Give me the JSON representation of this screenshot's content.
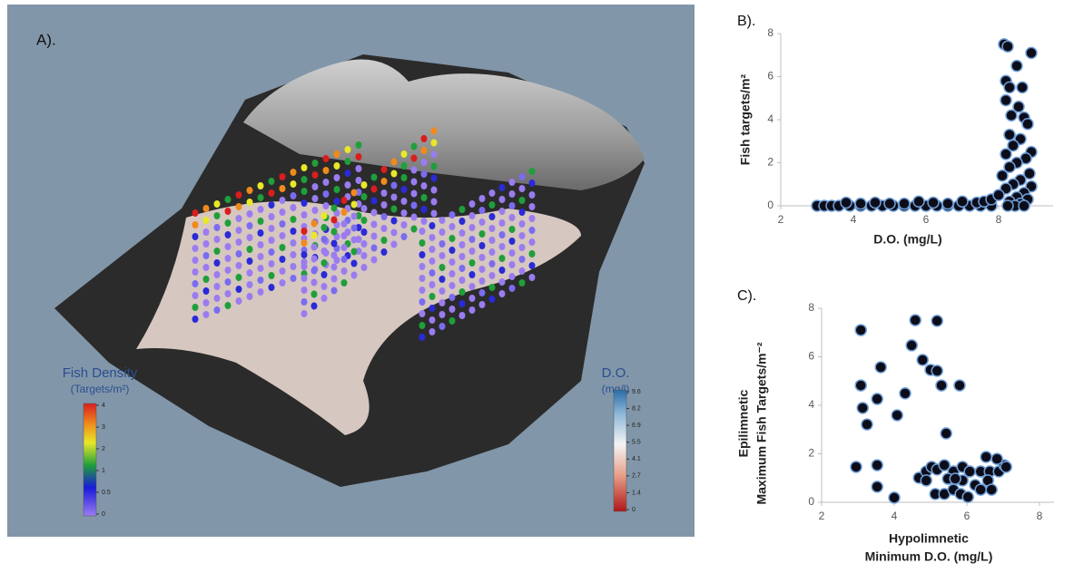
{
  "panel_a": {
    "label": "A).",
    "fish_colorbar": {
      "title": "Fish Density",
      "subtitle": "(Targets/m²)",
      "ticks": [
        0,
        0.5,
        1,
        2,
        3,
        4
      ]
    },
    "do_colorbar": {
      "title": "D.O.",
      "subtitle": "(mg/l)",
      "ticks": [
        0,
        1.4,
        2.7,
        4.1,
        5.5,
        6.9,
        8.2,
        9.6
      ]
    }
  },
  "chart_data": [
    {
      "type": "scatter",
      "label": "B).",
      "x_label": [
        "D.O. (mg/L)"
      ],
      "y_label": [
        "Fish targets/m²"
      ],
      "xlim": [
        2,
        9.5
      ],
      "ylim": [
        0,
        8
      ],
      "xticks": [
        2,
        4,
        6,
        8
      ],
      "yticks": [
        0,
        2,
        4,
        6,
        8
      ],
      "color": "#0d0d1a",
      "edge_color": "#6f9fd8",
      "x": [
        3,
        3.2,
        3.4,
        3.6,
        3.9,
        4.2,
        4.5,
        4.8,
        5.1,
        5.4,
        5.7,
        6,
        6.3,
        6.6,
        6.9,
        7.2,
        7.5,
        7.8,
        3.8,
        4.2,
        4.6,
        5,
        5.4,
        5.8,
        6.2,
        6.6,
        7,
        7.4,
        7.6,
        7.8,
        8.15,
        8.25,
        8.5,
        8.9,
        8.2,
        8.3,
        8.65,
        8.2,
        8.55,
        8.35,
        8.7,
        8.8,
        8.3,
        8.6,
        8.4,
        8.9,
        8.2,
        8.75,
        8.5,
        8.3,
        8.85,
        8.1,
        8.6,
        8.4,
        8.9,
        8.2,
        8.7,
        8,
        8.5,
        8.8,
        8.3,
        8.6,
        8.45,
        8.7,
        8.25
      ],
      "values": [
        0,
        0,
        0,
        0,
        0,
        0,
        0,
        0,
        0,
        0,
        0,
        0,
        0,
        0,
        0,
        0,
        0,
        0,
        0.15,
        0.1,
        0.15,
        0.1,
        0.1,
        0.2,
        0.15,
        0.1,
        0.2,
        0.15,
        0.2,
        0.3,
        7.5,
        7.4,
        6.5,
        7.1,
        5.8,
        5.5,
        5.5,
        4.9,
        4.6,
        4.2,
        4.1,
        3.8,
        3.3,
        3.1,
        2.8,
        2.5,
        2.4,
        2.2,
        2,
        1.8,
        1.5,
        1.4,
        1.2,
        1,
        0.9,
        0.8,
        0.6,
        0.5,
        0.4,
        0.3,
        0.2,
        0.1,
        0,
        0,
        0
      ]
    },
    {
      "type": "scatter",
      "label": "C).",
      "x_label": [
        "Hypolimnetic",
        "Minimum D.O. (mg/L)"
      ],
      "y_label": [
        "Epilimnetic",
        "Maximum Fish Targets/m⁻²"
      ],
      "xlim": [
        2,
        8.4
      ],
      "ylim": [
        0,
        8
      ],
      "xticks": [
        2,
        4,
        6,
        8
      ],
      "yticks": [
        0,
        2,
        4,
        6,
        8
      ],
      "color": "#0d0d1a",
      "edge_color": "#6f9fd8",
      "x": [
        3.08,
        3.63,
        3.08,
        3.53,
        3.13,
        3.25,
        2.95,
        3.53,
        3.53,
        4.0,
        4.08,
        4.3,
        4.48,
        4.58,
        4.78,
        5.0,
        5.18,
        5.18,
        5.3,
        5.8,
        5.43,
        4.68,
        4.88,
        5.03,
        5.18,
        5.38,
        5.63,
        5.88,
        6.08,
        6.38,
        6.63,
        6.88,
        7.03,
        7.08,
        6.53,
        6.83,
        4.88,
        5.13,
        5.38,
        5.63,
        5.83,
        5.88,
        6.03,
        6.23,
        6.58,
        6.68,
        5.48,
        5.68,
        6.38
      ],
      "values": [
        7.1,
        5.57,
        4.82,
        4.26,
        3.89,
        3.21,
        1.46,
        1.53,
        0.64,
        0.19,
        3.59,
        4.49,
        6.47,
        7.51,
        5.87,
        5.46,
        5.42,
        7.48,
        4.82,
        4.82,
        2.84,
        1.01,
        1.27,
        1.46,
        1.35,
        1.53,
        1.27,
        1.46,
        1.27,
        1.27,
        1.27,
        1.27,
        1.53,
        1.46,
        1.87,
        1.79,
        0.9,
        0.34,
        0.34,
        0.52,
        0.34,
        0.9,
        0.22,
        0.71,
        0.9,
        0.52,
        0.97,
        0.97,
        0.52
      ]
    }
  ]
}
